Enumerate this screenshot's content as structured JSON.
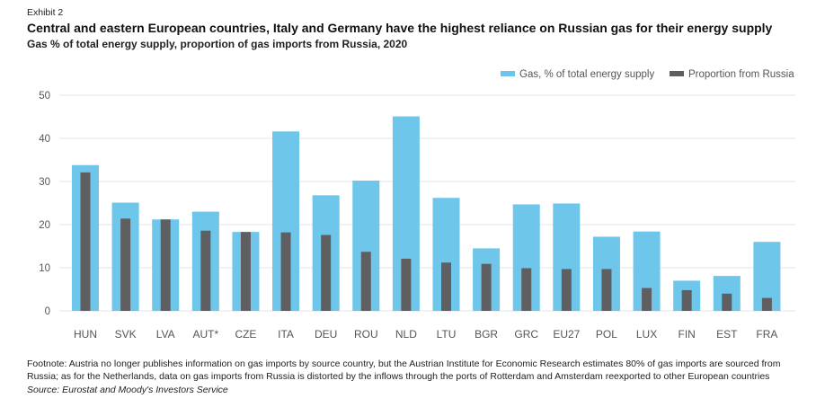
{
  "header": {
    "exhibit": "Exhibit 2",
    "title": "Central and eastern European countries, Italy and Germany have the highest reliance on Russian gas for their energy supply",
    "subtitle": "Gas % of total energy supply, proportion of gas imports from Russia, 2020"
  },
  "footer": {
    "footnote": "Footnote: Austria no longer publishes information on gas imports by source country, but the Austrian Institute for Economic Research estimates 80% of gas imports are sourced from Russia; as for the Netherlands, data on gas imports from Russia is distorted by the inflows through the ports of Rotterdam and Amsterdam reexported to other European countries",
    "source": "Source: Eurostat and Moody's Investors Service"
  },
  "colors": {
    "gas": "#6ec6ea",
    "russia": "#5f5f61",
    "grid": "#e4e4e4",
    "axis_text": "#555555"
  },
  "chart_data": {
    "type": "bar",
    "title": "Central and eastern European countries, Italy and Germany have the highest reliance on Russian gas for their energy supply",
    "subtitle": "Gas % of total energy supply, proportion of gas imports from Russia, 2020",
    "categories": [
      "HUN",
      "SVK",
      "LVA",
      "AUT*",
      "CZE",
      "ITA",
      "DEU",
      "ROU",
      "NLD",
      "LTU",
      "BGR",
      "GRC",
      "EU27",
      "POL",
      "LUX",
      "FIN",
      "EST",
      "FRA"
    ],
    "series": [
      {
        "name": "Gas, % of total energy supply",
        "values": [
          33.8,
          25.1,
          21.2,
          23.0,
          18.3,
          41.6,
          26.8,
          30.2,
          45.1,
          26.2,
          14.5,
          24.7,
          24.9,
          17.2,
          18.4,
          7.0,
          8.1,
          16.0
        ]
      },
      {
        "name": "Proportion from Russia",
        "values": [
          32.1,
          21.4,
          21.2,
          18.6,
          18.3,
          18.2,
          17.6,
          13.7,
          12.1,
          11.2,
          10.9,
          9.9,
          9.7,
          9.7,
          5.3,
          4.8,
          4.0,
          3.0
        ]
      }
    ],
    "ylim": [
      0,
      50
    ],
    "yticks": [
      0,
      10,
      20,
      30,
      40,
      50
    ],
    "legend_position": "top-right",
    "grid": true,
    "xlabel": "",
    "ylabel": ""
  }
}
